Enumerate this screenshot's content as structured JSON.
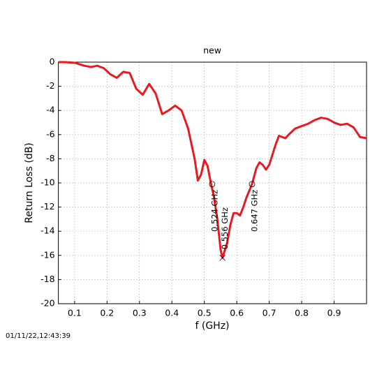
{
  "chart_data": {
    "type": "line",
    "title": "new",
    "xlabel": "f (GHz)",
    "ylabel": "Return Loss (dB)",
    "x": [
      0.05,
      0.07,
      0.1,
      0.13,
      0.15,
      0.17,
      0.19,
      0.21,
      0.23,
      0.25,
      0.27,
      0.29,
      0.31,
      0.33,
      0.35,
      0.37,
      0.39,
      0.41,
      0.43,
      0.45,
      0.47,
      0.48,
      0.49,
      0.5,
      0.51,
      0.52,
      0.53,
      0.54,
      0.55,
      0.556,
      0.57,
      0.58,
      0.59,
      0.6,
      0.61,
      0.62,
      0.63,
      0.647,
      0.66,
      0.67,
      0.68,
      0.69,
      0.7,
      0.72,
      0.73,
      0.75,
      0.76,
      0.78,
      0.8,
      0.82,
      0.84,
      0.86,
      0.88,
      0.9,
      0.92,
      0.94,
      0.96,
      0.98,
      1.0
    ],
    "series": [
      {
        "name": "new",
        "color": "#e8191f",
        "values": [
          0,
          0,
          -0.05,
          -0.3,
          -0.4,
          -0.3,
          -0.5,
          -1.0,
          -1.3,
          -0.8,
          -0.9,
          -2.2,
          -2.7,
          -1.8,
          -2.6,
          -4.3,
          -4.0,
          -3.6,
          -4.0,
          -5.5,
          -8.0,
          -9.8,
          -9.3,
          -8.1,
          -8.6,
          -10.0,
          -11.2,
          -13.0,
          -15.5,
          -16.2,
          -15.0,
          -13.5,
          -12.5,
          -12.5,
          -12.7,
          -12.0,
          -11.2,
          -10.1,
          -8.8,
          -8.3,
          -8.5,
          -8.9,
          -8.5,
          -6.8,
          -6.1,
          -6.3,
          -6.0,
          -5.5,
          -5.3,
          -5.1,
          -4.8,
          -4.6,
          -4.7,
          -5.0,
          -5.2,
          -5.1,
          -5.4,
          -6.2,
          -6.3
        ]
      }
    ],
    "markers": [
      {
        "x": 0.524,
        "y": -10.1,
        "label": "0.524 GHz",
        "symbol": "circle"
      },
      {
        "x": 0.556,
        "y": -16.2,
        "label": "0.556 GHz",
        "symbol": "cross"
      },
      {
        "x": 0.647,
        "y": -10.1,
        "label": "0.647 GHz",
        "symbol": "circle"
      }
    ],
    "xlim": [
      0.05,
      1.0
    ],
    "ylim": [
      -20,
      0
    ],
    "xticks": [
      0.1,
      0.2,
      0.3,
      0.4,
      0.5,
      0.6,
      0.7,
      0.8,
      0.9
    ],
    "yticks": [
      -20,
      -18,
      -16,
      -14,
      -12,
      -10,
      -8,
      -6,
      -4,
      -2,
      0
    ],
    "grid": true,
    "timestamp": "01/11/22,12:43:39"
  }
}
